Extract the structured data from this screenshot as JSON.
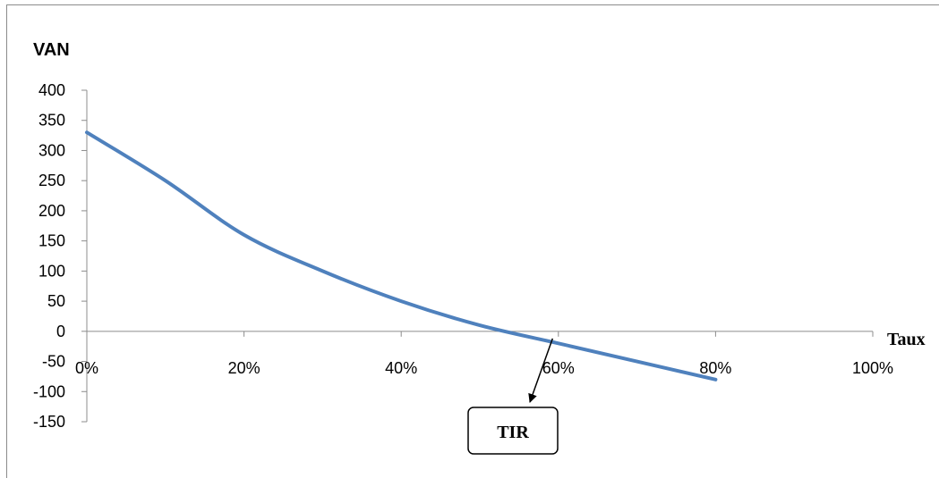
{
  "chart_data": {
    "type": "line",
    "title": "",
    "ylabel": "VAN",
    "xlabel": "Taux",
    "x": [
      0,
      10,
      20,
      30,
      40,
      50,
      60,
      70,
      80
    ],
    "series": [
      {
        "values": [
          330,
          250,
          160,
          100,
          50,
          10,
          -20,
          -50,
          -80
        ]
      }
    ],
    "xlim": [
      0,
      100
    ],
    "ylim": [
      -150,
      400
    ],
    "x_ticks": [
      "0%",
      "20%",
      "40%",
      "60%",
      "80%",
      "100%"
    ],
    "y_ticks": [
      "400",
      "350",
      "300",
      "250",
      "200",
      "150",
      "100",
      "50",
      "0",
      "-50",
      "-100",
      "-150"
    ],
    "grid": false,
    "line_color": "#4f81bd",
    "annotation": {
      "text": "TIR",
      "points_to_rate": 53,
      "points_to_value": 0
    }
  }
}
